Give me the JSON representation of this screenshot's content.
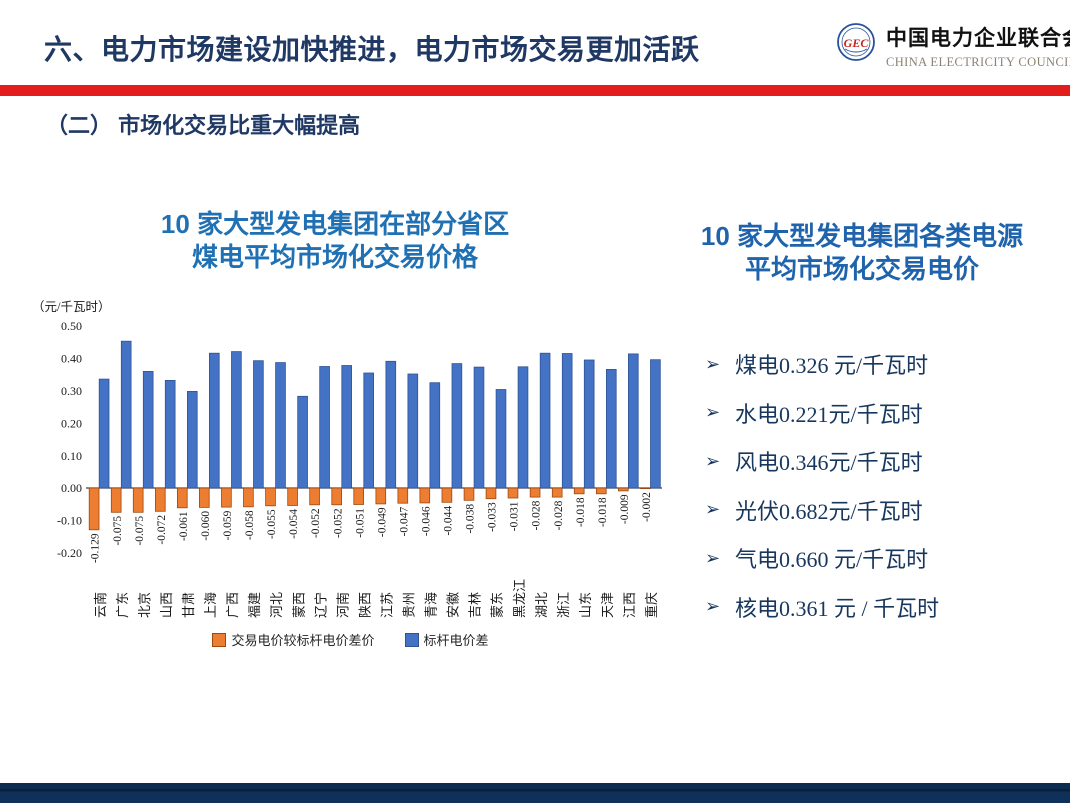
{
  "header": {
    "title": "六、电力市场建设加快推进，电力市场交易更加活跃"
  },
  "logo": {
    "name_cn": "中国电力企业联合会",
    "name_en": "CHINA ELECTRICITY COUNCIL",
    "monogram": "GEC"
  },
  "subtitle": "（二） 市场化交易比重大幅提高",
  "left_chart": {
    "title_line1": "10 家大型发电集团在部分省区",
    "title_line2": "煤电平均市场化交易价格"
  },
  "chart_data": {
    "type": "bar",
    "title": "10 家大型发电集团在部分省区煤电平均市场化交易价格",
    "unit": "（元/千瓦时）",
    "ylim": [
      -0.2,
      0.5
    ],
    "yticks": [
      0.5,
      0.4,
      0.3,
      0.2,
      0.1,
      0,
      -0.1,
      -0.2
    ],
    "grid": false,
    "legend_position": "bottom",
    "categories": [
      "云南",
      "广东",
      "北京",
      "山西",
      "甘肃",
      "上海",
      "广西",
      "福建",
      "河北",
      "蒙西",
      "辽宁",
      "河南",
      "陕西",
      "江苏",
      "贵州",
      "青海",
      "安徽",
      "吉林",
      "蒙东",
      "黑龙江",
      "湖北",
      "浙江",
      "山东",
      "天津",
      "江西",
      "重庆"
    ],
    "series": [
      {
        "name": "交易电价较标杆电价差价",
        "color": "#ED7D31",
        "border": "#9C4A12",
        "labeled": true,
        "values": [
          -0.129,
          -0.075,
          -0.075,
          -0.072,
          -0.061,
          -0.06,
          -0.059,
          -0.058,
          -0.055,
          -0.054,
          -0.052,
          -0.052,
          -0.051,
          -0.049,
          -0.047,
          -0.046,
          -0.044,
          -0.038,
          -0.033,
          -0.031,
          -0.028,
          -0.028,
          -0.018,
          -0.018,
          -0.009,
          -0.002
        ]
      },
      {
        "name": "标杆电价差",
        "color": "#4472C4",
        "border": "#2F5496",
        "labeled": false,
        "values": [
          0.336,
          0.453,
          0.36,
          0.332,
          0.298,
          0.416,
          0.421,
          0.393,
          0.387,
          0.283,
          0.375,
          0.378,
          0.355,
          0.391,
          0.352,
          0.325,
          0.384,
          0.373,
          0.304,
          0.374,
          0.416,
          0.415,
          0.395,
          0.366,
          0.414,
          0.396
        ]
      }
    ]
  },
  "right_panel": {
    "title_line1": "10 家大型发电集团各类电源",
    "title_line2": "平均市场化交易电价",
    "bullet_glyph": "➢",
    "bullets": [
      {
        "text": "煤电0.326 元/千瓦时"
      },
      {
        "text": "水电0.221元/千瓦时"
      },
      {
        "text": "风电0.346元/千瓦时"
      },
      {
        "text": "光伏0.682元/千瓦时"
      },
      {
        "text": "气电0.660 元/千瓦时"
      },
      {
        "text": "核电0.361 元 / 千瓦时"
      }
    ]
  },
  "colors": {
    "header_text": "#1F3864",
    "red_divider": "#E31C1C",
    "left_title_blue": "#2070B4",
    "right_title_blue": "#1E63AC",
    "bullet_text": "#17375E",
    "bar_orange": "#ED7D31",
    "bar_blue": "#4472C4",
    "footer_navy": "#0F3058"
  }
}
